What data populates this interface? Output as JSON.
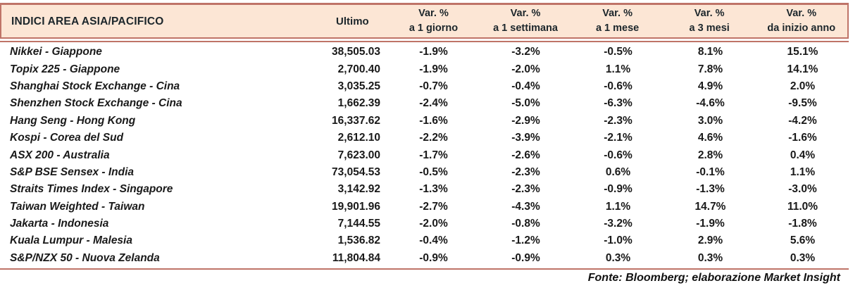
{
  "colors": {
    "accent_rule": "#bf7468",
    "header_bg": "#fce6d5",
    "header_text": "#1c262b",
    "body_text": "#191919"
  },
  "table": {
    "header": {
      "col_indices": "INDICI AREA ASIA/PACIFICO",
      "col_ultimo": "Ultimo",
      "var_cols": [
        {
          "line1": "Var. %",
          "line2": "a 1 giorno"
        },
        {
          "line1": "Var. %",
          "line2": "a 1 settimana"
        },
        {
          "line1": "Var. %",
          "line2": "a 1 mese"
        },
        {
          "line1": "Var. %",
          "line2": "a 3 mesi"
        },
        {
          "line1": "Var. %",
          "line2": "da inizio anno"
        }
      ]
    },
    "rows": [
      {
        "name": "Nikkei - Giappone",
        "ultimo": "38,505.03",
        "var_1g": "-1.9%",
        "var_1s": "-3.2%",
        "var_1m": "-0.5%",
        "var_3m": "8.1%",
        "var_ytd": "15.1%"
      },
      {
        "name": "Topix 225 - Giappone",
        "ultimo": "2,700.40",
        "var_1g": "-1.9%",
        "var_1s": "-2.0%",
        "var_1m": "1.1%",
        "var_3m": "7.8%",
        "var_ytd": "14.1%"
      },
      {
        "name": "Shanghai Stock Exchange - Cina",
        "ultimo": "3,035.25",
        "var_1g": "-0.7%",
        "var_1s": "-0.4%",
        "var_1m": "-0.6%",
        "var_3m": "4.9%",
        "var_ytd": "2.0%"
      },
      {
        "name": "Shenzhen Stock Exchange - Cina",
        "ultimo": "1,662.39",
        "var_1g": "-2.4%",
        "var_1s": "-5.0%",
        "var_1m": "-6.3%",
        "var_3m": "-4.6%",
        "var_ytd": "-9.5%"
      },
      {
        "name": "Hang Seng - Hong Kong",
        "ultimo": "16,337.62",
        "var_1g": "-1.6%",
        "var_1s": "-2.9%",
        "var_1m": "-2.3%",
        "var_3m": "3.0%",
        "var_ytd": "-4.2%"
      },
      {
        "name": "Kospi - Corea del Sud",
        "ultimo": "2,612.10",
        "var_1g": "-2.2%",
        "var_1s": "-3.9%",
        "var_1m": "-2.1%",
        "var_3m": "4.6%",
        "var_ytd": "-1.6%"
      },
      {
        "name": "ASX 200 - Australia",
        "ultimo": "7,623.00",
        "var_1g": "-1.7%",
        "var_1s": "-2.6%",
        "var_1m": "-0.6%",
        "var_3m": "2.8%",
        "var_ytd": "0.4%"
      },
      {
        "name": "S&P BSE Sensex - India",
        "ultimo": "73,054.53",
        "var_1g": "-0.5%",
        "var_1s": "-2.3%",
        "var_1m": "0.6%",
        "var_3m": "-0.1%",
        "var_ytd": "1.1%"
      },
      {
        "name": "Straits Times Index - Singapore",
        "ultimo": "3,142.92",
        "var_1g": "-1.3%",
        "var_1s": "-2.3%",
        "var_1m": "-0.9%",
        "var_3m": "-1.3%",
        "var_ytd": "-3.0%"
      },
      {
        "name": "Taiwan Weighted - Taiwan",
        "ultimo": "19,901.96",
        "var_1g": "-2.7%",
        "var_1s": "-4.3%",
        "var_1m": "1.1%",
        "var_3m": "14.7%",
        "var_ytd": "11.0%"
      },
      {
        "name": "Jakarta - Indonesia",
        "ultimo": "7,144.55",
        "var_1g": "-2.0%",
        "var_1s": "-0.8%",
        "var_1m": "-3.2%",
        "var_3m": "-1.9%",
        "var_ytd": "-1.8%"
      },
      {
        "name": "Kuala Lumpur - Malesia",
        "ultimo": "1,536.82",
        "var_1g": "-0.4%",
        "var_1s": "-1.2%",
        "var_1m": "-1.0%",
        "var_3m": "2.9%",
        "var_ytd": "5.6%"
      },
      {
        "name": "S&P/NZX 50 - Nuova Zelanda",
        "ultimo": "11,804.84",
        "var_1g": "-0.9%",
        "var_1s": "-0.9%",
        "var_1m": "0.3%",
        "var_3m": "0.3%",
        "var_ytd": "0.3%"
      }
    ]
  },
  "footer": {
    "source": "Fonte: Bloomberg; elaborazione Market Insight"
  }
}
